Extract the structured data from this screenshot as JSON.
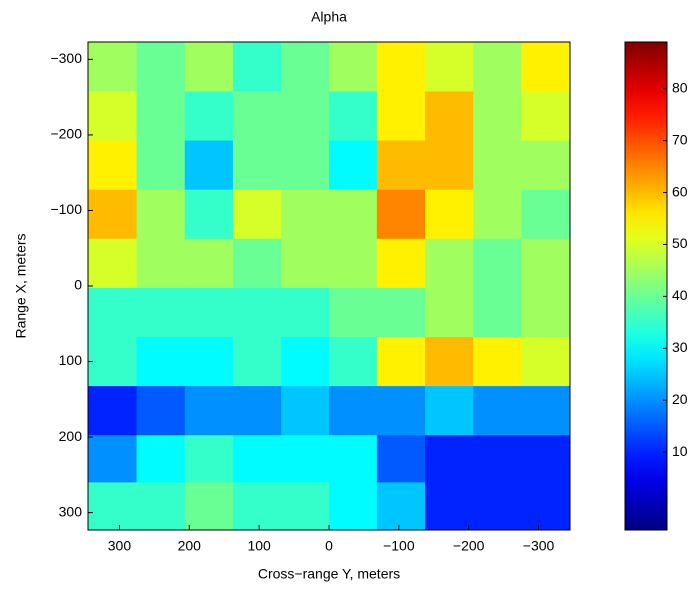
{
  "chart_data": {
    "type": "heatmap",
    "title": "Alpha",
    "x_label": "Cross−range Y, meters",
    "y_label": "Range X, meters",
    "colormap": "jet",
    "x": [
      310,
      241,
      172,
      103,
      34,
      -34,
      -103,
      -172,
      -241,
      -310
    ],
    "y": [
      -290,
      -225,
      -160,
      -95,
      -30,
      35,
      100,
      165,
      230,
      290
    ],
    "z": [
      [
        45,
        40,
        45,
        35,
        40,
        45,
        55,
        50,
        45,
        55
      ],
      [
        50,
        40,
        35,
        40,
        40,
        35,
        55,
        60,
        45,
        50
      ],
      [
        55,
        40,
        25,
        40,
        40,
        30,
        60,
        60,
        45,
        45
      ],
      [
        60,
        45,
        35,
        50,
        45,
        45,
        65,
        55,
        45,
        40
      ],
      [
        50,
        45,
        45,
        40,
        45,
        45,
        55,
        45,
        40,
        45
      ],
      [
        35,
        35,
        35,
        35,
        35,
        40,
        40,
        45,
        40,
        45
      ],
      [
        35,
        30,
        30,
        35,
        30,
        35,
        55,
        60,
        55,
        50
      ],
      [
        10,
        15,
        20,
        20,
        25,
        20,
        20,
        25,
        20,
        20
      ],
      [
        20,
        30,
        35,
        30,
        30,
        30,
        15,
        10,
        10,
        10
      ],
      [
        35,
        35,
        40,
        35,
        35,
        30,
        25,
        10,
        10,
        10
      ]
    ],
    "xlim": [
      345,
      -345
    ],
    "ylim": [
      -323,
      323
    ],
    "xticks": [
      300,
      200,
      100,
      0,
      {
        "value": -100,
        "label": "−100"
      },
      {
        "value": -200,
        "label": "−200"
      },
      {
        "value": -300,
        "label": "−300"
      }
    ],
    "yticks": [
      {
        "value": -300,
        "label": "−300"
      },
      {
        "value": -200,
        "label": "−200"
      },
      {
        "value": -100,
        "label": "−100"
      },
      0,
      100,
      200,
      300
    ],
    "clim": [
      -5,
      89
    ],
    "cticks": [
      10,
      20,
      30,
      40,
      50,
      60,
      70,
      80
    ]
  }
}
